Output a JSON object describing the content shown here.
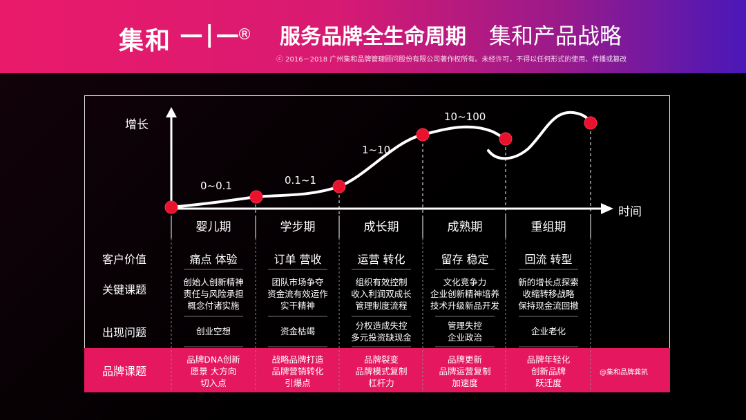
{
  "header": {
    "logo": "集和",
    "logo_mark": "—|—",
    "logo_reg": "®",
    "title": "服务品牌全生命周期",
    "subtitle": "集和产品战略",
    "copyright": "ⓒ 2016－2018 广州集和品牌管理顾问股份有限公司著作权所有。未经许可，不得以任何形式的使用、传播或篡改"
  },
  "chart": {
    "y_axis_label": "增长",
    "x_axis_label": "时间",
    "ranges": [
      "0~0.1",
      "0.1~1",
      "1~10",
      "10~100"
    ]
  },
  "phases": [
    "婴儿期",
    "学步期",
    "成长期",
    "成熟期",
    "重组期"
  ],
  "rows": {
    "customer_value": {
      "label": "客户价值",
      "cells": [
        "痛点 体验",
        "订单 营收",
        "运营 转化",
        "留存 稳定",
        "回流 转型"
      ]
    },
    "key_topics": {
      "label": "关键课题",
      "cells": [
        [
          "创始人创新精神",
          "责任与风险承担",
          "概念付诸实施"
        ],
        [
          "团队市场争夺",
          "资金流有效运作",
          "实干精神"
        ],
        [
          "组织有效控制",
          "收入利润双成长",
          "管理制度流程"
        ],
        [
          "文化竞争力",
          "企业创新精神培养",
          "技术升级新品开发"
        ],
        [
          "新的增长点探索",
          "收缩转移战略",
          "保持现金流回撤"
        ]
      ]
    },
    "problems": {
      "label": "出现问题",
      "cells": [
        [
          "创业空想"
        ],
        [
          "资金枯竭"
        ],
        [
          "分权造成失控",
          "多元投资缺现金"
        ],
        [
          "管理失控",
          "企业政治"
        ],
        [
          "企业老化"
        ]
      ]
    },
    "brand_topics": {
      "label": "品牌课题",
      "cells": [
        [
          "品牌DNA创新",
          "愿景 大方向",
          "切入点"
        ],
        [
          "战略品牌打造",
          "品牌营销转化",
          "引爆点"
        ],
        [
          "品牌裂变",
          "品牌模式复制",
          "杠杆力"
        ],
        [
          "品牌更新",
          "品牌运营复制",
          "加速度"
        ],
        [
          "品牌年轻化",
          "创新品牌",
          "跃迁度"
        ]
      ]
    }
  },
  "credit": "@集和品牌龚凯",
  "colors": {
    "accent": "#e5175f",
    "point": "#e8122d"
  }
}
